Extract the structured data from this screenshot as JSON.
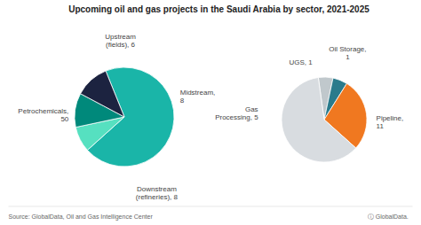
{
  "chart_data": [
    {
      "type": "pie",
      "title": "Upcoming oil and gas projects in the Saudi Arabia by sector, 2021-2025",
      "annotations": [
        "Source: GlobalData, Oil and Gas Intelligence Center",
        "ⓘ GlobalData."
      ],
      "values": [
        50,
        6,
        8,
        8
      ],
      "value_labels": [
        "Petrochemicals,\n50",
        "Upstream\n(fields), 6",
        "Midstream,\n8",
        "Downstream\n(refineries), 8"
      ],
      "colors": [
        "#1ab5a8",
        "#56e0c0",
        "#00897b",
        "#1c2340"
      ],
      "data_labels": true
    },
    {
      "type": "pie",
      "values": [
        1,
        1,
        5,
        11
      ],
      "value_labels": [
        "Oil Storage,\n1",
        "UGS, 1",
        "Gas\nProcessing, 5",
        "Pipeline,\n11"
      ],
      "colors": [
        "#c0c8cc",
        "#2a7b8c",
        "#f07820",
        "#d8dce0"
      ],
      "data_labels": true
    }
  ]
}
